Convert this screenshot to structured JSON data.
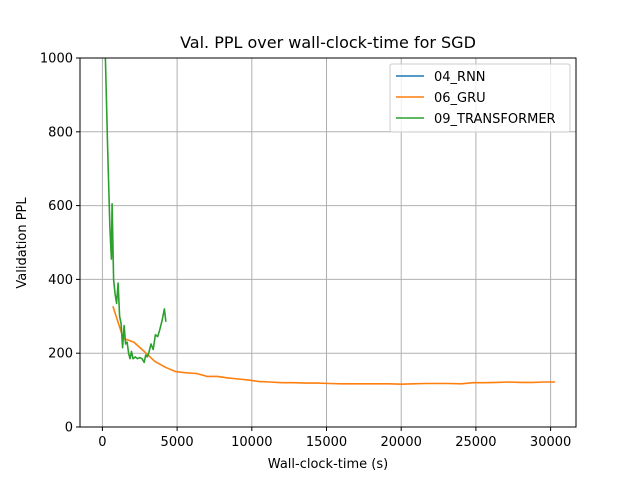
{
  "chart_data": {
    "type": "line",
    "title": "Val. PPL over wall-clock-time for SGD",
    "xlabel": "Wall-clock-time (s)",
    "ylabel": "Validation PPL",
    "xlim": [
      -1500,
      31700
    ],
    "ylim": [
      0,
      1000
    ],
    "xticks": [
      0,
      5000,
      10000,
      15000,
      20000,
      25000,
      30000
    ],
    "yticks": [
      0,
      200,
      400,
      600,
      800,
      1000
    ],
    "grid": true,
    "legend_position": "top-right",
    "series": [
      {
        "name": "04_RNN",
        "color": "#1f77b4",
        "x": [],
        "y": []
      },
      {
        "name": "06_GRU",
        "color": "#ff7f0e",
        "x": [
          700,
          1400,
          2100,
          2800,
          3500,
          4200,
          4900,
          5600,
          6300,
          7000,
          7700,
          8400,
          9100,
          9800,
          10500,
          11200,
          12000,
          12800,
          13600,
          14400,
          15200,
          16000,
          16800,
          17600,
          18400,
          19200,
          20000,
          20800,
          21600,
          22400,
          23200,
          24000,
          24800,
          25600,
          26400,
          27200,
          28000,
          28800,
          29600,
          30300
        ],
        "y": [
          327,
          240,
          230,
          205,
          178,
          162,
          150,
          147,
          145,
          137,
          137,
          133,
          130,
          127,
          123,
          122,
          120,
          120,
          119,
          119,
          118,
          117,
          117,
          117,
          117,
          117,
          116,
          117,
          118,
          118,
          118,
          117,
          120,
          120,
          121,
          122,
          121,
          121,
          122,
          122
        ]
      },
      {
        "name": "09_TRANSFORMER",
        "color": "#2ca02c",
        "x": [
          200,
          350,
          500,
          600,
          650,
          750,
          850,
          950,
          1050,
          1150,
          1250,
          1350,
          1450,
          1550,
          1650,
          1750,
          1850,
          1950,
          2050,
          2200,
          2350,
          2500,
          2650,
          2800,
          2900,
          3000,
          3100,
          3250,
          3400,
          3550,
          3700,
          3850,
          4000,
          4150,
          4250
        ],
        "y": [
          1000,
          760,
          540,
          455,
          605,
          400,
          360,
          335,
          390,
          300,
          280,
          215,
          275,
          225,
          230,
          200,
          185,
          205,
          185,
          190,
          185,
          188,
          185,
          175,
          195,
          190,
          200,
          225,
          210,
          250,
          245,
          265,
          290,
          320,
          285
        ]
      }
    ]
  }
}
